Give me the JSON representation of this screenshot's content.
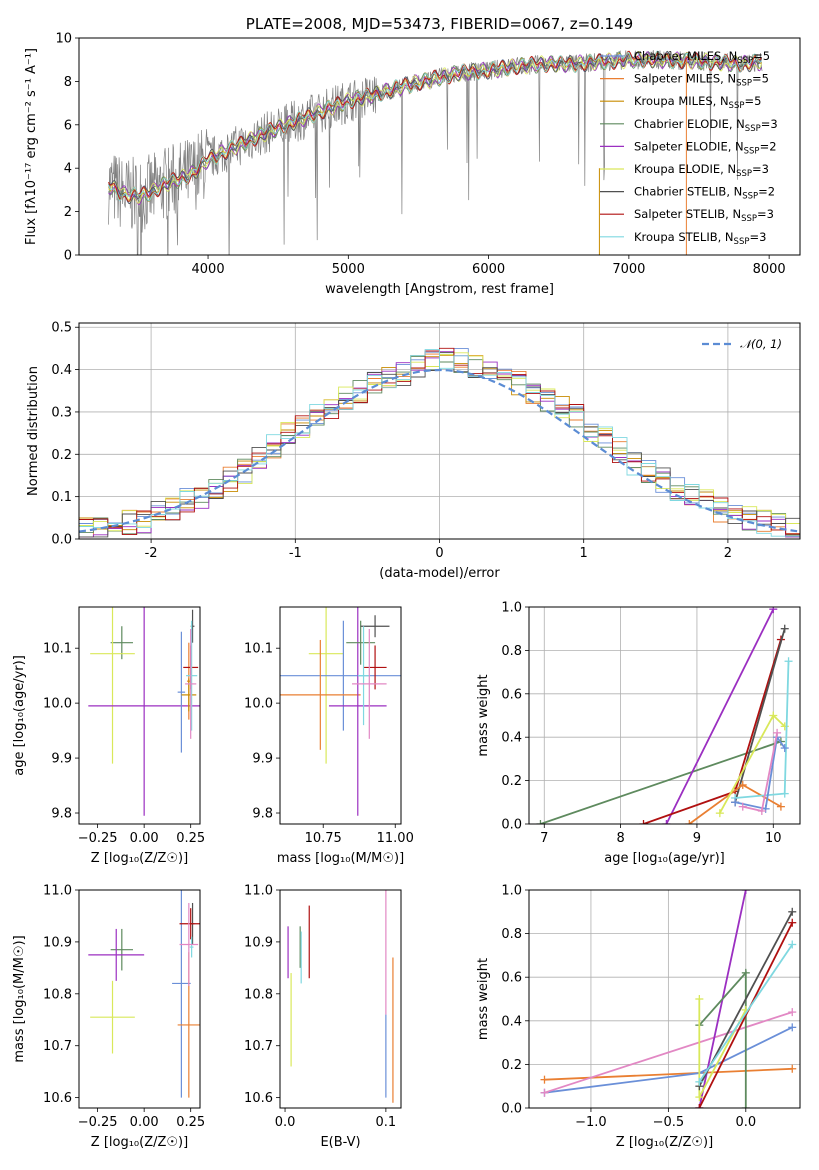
{
  "colors": {
    "Chabrier MILES": "#6a8fd8",
    "Salpeter MILES": "#e97f32",
    "Kroupa MILES": "#c88b00",
    "Chabrier ELODIE": "#5e8a5e",
    "Salpeter ELODIE": "#9b2fc1",
    "Kroupa ELODIE": "#d9e85a",
    "Chabrier STELIB": "#505050",
    "Salpeter STELIB": "#b01010",
    "Kroupa STELIB": "#7fd8e0",
    "pink": "#e288c4",
    "data": "#808080",
    "gaussian": "#5b8cd4"
  },
  "chart_data": [
    {
      "id": "spectrum",
      "type": "line",
      "title": "PLATE=2008, MJD=53473, FIBERID=0067, z=0.149",
      "xlabel": "wavelength [Angstrom, rest frame]",
      "ylabel": "Flux [fλ10⁻¹⁷ erg cm⁻² s⁻¹ A⁻¹]",
      "xlim": [
        3080,
        8220
      ],
      "ylim": [
        0,
        10
      ],
      "xticks": [
        4000,
        5000,
        6000,
        7000,
        8000
      ],
      "yticks": [
        0,
        2,
        4,
        6,
        8,
        10
      ],
      "legend_position": "top-right",
      "continuum": {
        "x": [
          3290,
          3400,
          3500,
          3600,
          3700,
          3800,
          3900,
          4000,
          4200,
          4400,
          4600,
          4800,
          5000,
          5200,
          5400,
          5600,
          5800,
          6000,
          6200,
          6400,
          6600,
          6800,
          7000,
          7200,
          7400,
          7600,
          7800,
          7950
        ],
        "y": [
          3.2,
          2.8,
          2.7,
          2.9,
          3.3,
          3.5,
          3.8,
          4.4,
          5.0,
          5.6,
          6.1,
          6.6,
          7.1,
          7.4,
          7.8,
          8.1,
          8.4,
          8.5,
          8.7,
          8.8,
          8.8,
          8.9,
          9.0,
          9.0,
          8.95,
          8.9,
          8.8,
          8.9
        ]
      },
      "series": [
        {
          "name": "Chabrier MILES",
          "ssp": "5"
        },
        {
          "name": "Salpeter MILES",
          "ssp": "5"
        },
        {
          "name": "Kroupa MILES",
          "ssp": "5"
        },
        {
          "name": "Chabrier ELODIE",
          "ssp": "3"
        },
        {
          "name": "Salpeter ELODIE",
          "ssp": "2"
        },
        {
          "name": "Kroupa ELODIE",
          "ssp": "3"
        },
        {
          "name": "Chabrier STELIB",
          "ssp": "2"
        },
        {
          "name": "Salpeter STELIB",
          "ssp": "3"
        },
        {
          "name": "Kroupa STELIB",
          "ssp": "3"
        }
      ]
    },
    {
      "id": "residuals",
      "type": "line",
      "xlabel": "(data-model)/error",
      "ylabel": "Normed distribution",
      "xlim": [
        -2.5,
        2.5
      ],
      "ylim": [
        0,
        0.51
      ],
      "xticks": [
        -2,
        -1,
        0,
        1,
        2
      ],
      "yticks": [
        0.0,
        0.1,
        0.2,
        0.3,
        0.4,
        0.5
      ],
      "grid": true,
      "legend_position": "top-right",
      "legend": "𝒩(0, 1)",
      "histogram": {
        "bin_width": 0.1,
        "bin_start": -2.5,
        "values": [
          0.02,
          0.02,
          0.03,
          0.04,
          0.04,
          0.06,
          0.07,
          0.09,
          0.1,
          0.12,
          0.14,
          0.16,
          0.19,
          0.22,
          0.25,
          0.27,
          0.29,
          0.31,
          0.33,
          0.35,
          0.37,
          0.38,
          0.39,
          0.41,
          0.42,
          0.43,
          0.42,
          0.41,
          0.4,
          0.39,
          0.37,
          0.35,
          0.33,
          0.31,
          0.29,
          0.26,
          0.24,
          0.21,
          0.18,
          0.16,
          0.14,
          0.12,
          0.1,
          0.09,
          0.07,
          0.06,
          0.05,
          0.04,
          0.03,
          0.02
        ]
      }
    },
    {
      "id": "age-vs-z",
      "type": "scatter",
      "xlabel": "Z [log₁₀(Z/Z☉)]",
      "ylabel": "age  [log₁₀(age/yr)]",
      "xlim": [
        -0.35,
        0.3
      ],
      "ylim": [
        9.78,
        10.175
      ],
      "xticks": [
        -0.25,
        0.0,
        0.25
      ],
      "xtick_labels": [
        "−0.25",
        "0.00",
        "0.25"
      ],
      "yticks": [
        9.8,
        9.9,
        10.0,
        10.1
      ],
      "points": [
        {
          "series": "Chabrier ELODIE",
          "x": -0.12,
          "y": 10.11,
          "xerr": 0.06,
          "yerr": 0.03
        },
        {
          "series": "Kroupa ELODIE",
          "x": -0.17,
          "y": 10.09,
          "xerr": 0.12,
          "yerr": 0.2
        },
        {
          "series": "Salpeter ELODIE",
          "x": 0.0,
          "y": 9.995,
          "xerr": 0.3,
          "yerr": 0.2
        },
        {
          "series": "Chabrier MILES",
          "x": 0.2,
          "y": 10.02,
          "xerr": 0.02,
          "yerr": 0.11
        },
        {
          "series": "Salpeter MILES",
          "x": 0.24,
          "y": 10.04,
          "xerr": 0.01,
          "yerr": 0.07
        },
        {
          "series": "Kroupa MILES",
          "x": 0.24,
          "y": 10.015,
          "xerr": 0.04,
          "yerr": 0.03
        },
        {
          "series": "Chabrier STELIB",
          "x": 0.26,
          "y": 10.14,
          "xerr": 0.01,
          "yerr": 0.03
        },
        {
          "series": "Salpeter STELIB",
          "x": 0.25,
          "y": 10.065,
          "xerr": 0.04,
          "yerr": 0.04
        },
        {
          "series": "Kroupa STELIB",
          "x": 0.255,
          "y": 10.05,
          "xerr": 0.03,
          "yerr": 0.1
        },
        {
          "series": "pink",
          "x": 0.25,
          "y": 10.035,
          "xerr": 0.03,
          "yerr": 0.1
        }
      ]
    },
    {
      "id": "age-vs-mass",
      "type": "scatter",
      "xlabel": "mass [log₁₀(M/M☉)]",
      "xlim": [
        10.6,
        11.02
      ],
      "ylim": [
        9.78,
        10.175
      ],
      "xticks": [
        10.75,
        11.0
      ],
      "xtick_labels": [
        "10.75",
        "11.00"
      ],
      "yticks": [
        9.8,
        9.9,
        10.0,
        10.1
      ],
      "points": [
        {
          "series": "Kroupa ELODIE",
          "x": 10.76,
          "y": 10.09,
          "xerr": 0.06,
          "yerr": 0.2
        },
        {
          "series": "Chabrier MILES",
          "x": 10.82,
          "y": 10.05,
          "xerr": 0.22,
          "yerr": 0.1
        },
        {
          "series": "Salpeter MILES",
          "x": 10.74,
          "y": 10.015,
          "xerr": 0.14,
          "yerr": 0.1
        },
        {
          "series": "Salpeter ELODIE",
          "x": 10.87,
          "y": 9.995,
          "xerr": 0.1,
          "yerr": 0.2
        },
        {
          "series": "Chabrier ELODIE",
          "x": 10.88,
          "y": 10.11,
          "xerr": 0.05,
          "yerr": 0.04
        },
        {
          "series": "Chabrier STELIB",
          "x": 10.93,
          "y": 10.14,
          "xerr": 0.05,
          "yerr": 0.02
        },
        {
          "series": "Salpeter STELIB",
          "x": 10.93,
          "y": 10.065,
          "xerr": 0.04,
          "yerr": 0.04
        },
        {
          "series": "Kroupa STELIB",
          "x": 10.89,
          "y": 10.05,
          "xerr": 0.02,
          "yerr": 0.09
        },
        {
          "series": "pink",
          "x": 10.91,
          "y": 10.035,
          "xerr": 0.06,
          "yerr": 0.1
        }
      ]
    },
    {
      "id": "mass-weight-vs-age",
      "type": "line",
      "xlabel": "age  [log₁₀(age/yr)]",
      "ylabel": "mass weight",
      "xlim": [
        6.8,
        10.35
      ],
      "ylim": [
        0,
        1.0
      ],
      "xticks": [
        7,
        8,
        9,
        10
      ],
      "yticks": [
        0.0,
        0.2,
        0.4,
        0.6,
        0.8,
        1.0
      ],
      "grid": true,
      "series": [
        {
          "name": "Chabrier ELODIE",
          "x": [
            6.95,
            10.1
          ],
          "y": [
            0.0,
            0.38
          ]
        },
        {
          "name": "Salpeter ELODIE",
          "x": [
            8.6,
            10.0
          ],
          "y": [
            0.0,
            0.99
          ]
        },
        {
          "name": "Salpeter STELIB",
          "x": [
            8.3,
            9.5,
            10.1
          ],
          "y": [
            0.0,
            0.15,
            0.85
          ]
        },
        {
          "name": "Chabrier STELIB",
          "x": [
            9.5,
            10.15
          ],
          "y": [
            0.1,
            0.9
          ]
        },
        {
          "name": "Salpeter MILES",
          "x": [
            8.9,
            9.6,
            10.1
          ],
          "y": [
            0.0,
            0.18,
            0.08
          ]
        },
        {
          "name": "Kroupa ELODIE",
          "x": [
            9.3,
            10.0,
            10.15
          ],
          "y": [
            0.05,
            0.5,
            0.45
          ]
        },
        {
          "name": "Kroupa STELIB",
          "x": [
            9.5,
            10.15,
            10.2
          ],
          "y": [
            0.12,
            0.14,
            0.75
          ]
        },
        {
          "name": "Chabrier MILES",
          "x": [
            9.5,
            9.9,
            10.05,
            10.15
          ],
          "y": [
            0.1,
            0.07,
            0.4,
            0.35
          ]
        },
        {
          "name": "pink",
          "x": [
            9.6,
            9.85,
            10.05
          ],
          "y": [
            0.08,
            0.06,
            0.42
          ]
        }
      ]
    },
    {
      "id": "mass-vs-z",
      "type": "scatter",
      "xlabel": "Z [log₁₀(Z/Z☉)]",
      "ylabel": "mass [log₁₀(M/M☉)]",
      "xlim": [
        -0.35,
        0.3
      ],
      "ylim": [
        10.58,
        11.0
      ],
      "xticks": [
        -0.25,
        0.0,
        0.25
      ],
      "xtick_labels": [
        "−0.25",
        "0.00",
        "0.25"
      ],
      "yticks": [
        10.6,
        10.7,
        10.8,
        10.9,
        11.0
      ],
      "points": [
        {
          "series": "Chabrier ELODIE",
          "x": -0.12,
          "y": 10.885,
          "xerr": 0.06,
          "yerr": 0.04
        },
        {
          "series": "Salpeter ELODIE",
          "x": -0.15,
          "y": 10.875,
          "xerr": 0.15,
          "yerr": 0.05
        },
        {
          "series": "Kroupa ELODIE",
          "x": -0.17,
          "y": 10.755,
          "xerr": 0.12,
          "yerr": 0.07
        },
        {
          "series": "Chabrier MILES",
          "x": 0.2,
          "y": 10.82,
          "xerr": 0.05,
          "yerr": 0.22
        },
        {
          "series": "Salpeter MILES",
          "x": 0.24,
          "y": 10.74,
          "xerr": 0.06,
          "yerr": 0.14
        },
        {
          "series": "Chabrier STELIB",
          "x": 0.26,
          "y": 10.935,
          "xerr": 0.01,
          "yerr": 0.04
        },
        {
          "series": "Salpeter STELIB",
          "x": 0.25,
          "y": 10.935,
          "xerr": 0.06,
          "yerr": 0.03
        },
        {
          "series": "Kroupa STELIB",
          "x": 0.255,
          "y": 10.89,
          "xerr": 0.01,
          "yerr": 0.02
        },
        {
          "series": "pink",
          "x": 0.24,
          "y": 10.895,
          "xerr": 0.05,
          "yerr": 0.08
        }
      ]
    },
    {
      "id": "mass-vs-ebv",
      "type": "scatter",
      "xlabel": "E(B-V)",
      "xlim": [
        -0.005,
        0.115
      ],
      "ylim": [
        10.58,
        11.0
      ],
      "xticks": [
        0.0,
        0.1
      ],
      "xtick_labels": [
        "0.0",
        "0.1"
      ],
      "yticks": [
        10.6,
        10.7,
        10.8,
        10.9,
        11.0
      ],
      "points": [
        {
          "series": "Salpeter ELODIE",
          "x": 0.003,
          "y": 10.88,
          "xerr": 0,
          "yerr": 0.05
        },
        {
          "series": "Kroupa ELODIE",
          "x": 0.006,
          "y": 10.75,
          "xerr": 0,
          "yerr": 0.09
        },
        {
          "series": "Chabrier ELODIE",
          "x": 0.015,
          "y": 10.89,
          "xerr": 0,
          "yerr": 0.04
        },
        {
          "series": "Kroupa STELIB",
          "x": 0.016,
          "y": 10.87,
          "xerr": 0,
          "yerr": 0.05
        },
        {
          "series": "Salpeter STELIB",
          "x": 0.024,
          "y": 10.9,
          "xerr": 0,
          "yerr": 0.07
        },
        {
          "series": "Chabrier MILES",
          "x": 0.1,
          "y": 10.68,
          "xerr": 0,
          "yerr": 0.08
        },
        {
          "series": "pink",
          "x": 0.1,
          "y": 10.88,
          "xerr": 0,
          "yerr": 0.12
        },
        {
          "series": "Salpeter MILES",
          "x": 0.107,
          "y": 10.73,
          "xerr": 0,
          "yerr": 0.14
        }
      ]
    },
    {
      "id": "mass-weight-vs-z",
      "type": "line",
      "xlabel": "Z [log₁₀(Z/Z☉)]",
      "ylabel": "mass weight",
      "xlim": [
        -1.4,
        0.35
      ],
      "ylim": [
        0,
        1.0
      ],
      "xticks": [
        -1.0,
        -0.5,
        0.0
      ],
      "xtick_labels": [
        "−1.0",
        "−0.5",
        "0.0"
      ],
      "yticks": [
        0.0,
        0.2,
        0.4,
        0.6,
        0.8,
        1.0
      ],
      "grid": true,
      "series": [
        {
          "name": "Salpeter MILES",
          "x": [
            -1.3,
            0.3
          ],
          "y": [
            0.13,
            0.18
          ]
        },
        {
          "name": "Chabrier MILES",
          "x": [
            -1.3,
            -0.3,
            0.3
          ],
          "y": [
            0.07,
            0.16,
            0.37
          ]
        },
        {
          "name": "pink",
          "x": [
            -1.3,
            0.3
          ],
          "y": [
            0.07,
            0.44
          ]
        },
        {
          "name": "Salpeter ELODIE",
          "x": [
            -0.3,
            0.0
          ],
          "y": [
            0.0,
            1.0
          ]
        },
        {
          "name": "Chabrier ELODIE",
          "x": [
            -0.3,
            0.0,
            0.0
          ],
          "y": [
            0.38,
            0.62,
            0.0
          ]
        },
        {
          "name": "Kroupa ELODIE",
          "x": [
            -0.3,
            -0.3,
            0.0
          ],
          "y": [
            0.5,
            0.05,
            0.45
          ]
        },
        {
          "name": "Chabrier STELIB",
          "x": [
            -0.3,
            0.3
          ],
          "y": [
            0.1,
            0.9
          ]
        },
        {
          "name": "Salpeter STELIB",
          "x": [
            -0.3,
            0.3
          ],
          "y": [
            0.0,
            0.85
          ]
        },
        {
          "name": "Kroupa STELIB",
          "x": [
            -0.3,
            0.3
          ],
          "y": [
            0.12,
            0.75
          ]
        }
      ]
    }
  ]
}
